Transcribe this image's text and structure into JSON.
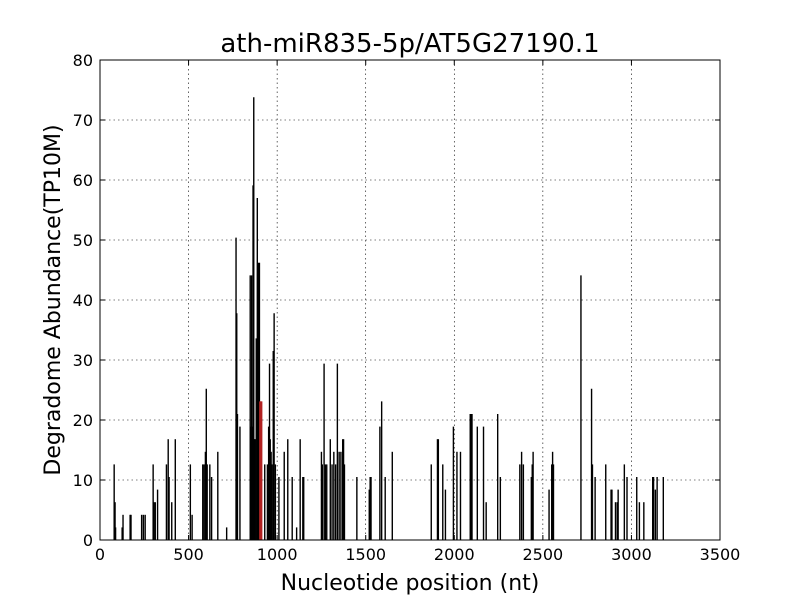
{
  "chart_data": {
    "type": "bar",
    "title": "ath-miR835-5p/AT5G27190.1",
    "xlabel": "Nucleotide position (nt)",
    "ylabel": "Degradome Abundance(TP10M)",
    "xlim": [
      0,
      3500
    ],
    "ylim": [
      0,
      80
    ],
    "xticks": [
      "0",
      "500",
      "1000",
      "1500",
      "2000",
      "2500",
      "3000",
      "3500"
    ],
    "yticks": [
      "0",
      "10",
      "20",
      "30",
      "40",
      "50",
      "60",
      "70",
      "80"
    ],
    "xtick_values": [
      0,
      500,
      1000,
      1500,
      2000,
      2500,
      3000,
      3500
    ],
    "ytick_values": [
      0,
      10,
      20,
      30,
      40,
      50,
      60,
      70,
      80
    ],
    "grid": true,
    "colors": {
      "bar": "#000000",
      "highlight": "#b22222"
    },
    "series": [
      {
        "values": [
          [
            80,
            12.6
          ],
          [
            85,
            6.3
          ],
          [
            88,
            2.1
          ],
          [
            125,
            2.1
          ],
          [
            130,
            4.2
          ],
          [
            170,
            4.2
          ],
          [
            175,
            4.2
          ],
          [
            235,
            4.2
          ],
          [
            245,
            4.2
          ],
          [
            255,
            4.2
          ],
          [
            300,
            12.6
          ],
          [
            305,
            6.3
          ],
          [
            312,
            6.3
          ],
          [
            325,
            8.4
          ],
          [
            375,
            12.6
          ],
          [
            385,
            16.8
          ],
          [
            390,
            10.5
          ],
          [
            405,
            6.3
          ],
          [
            425,
            16.8
          ],
          [
            510,
            12.6
          ],
          [
            520,
            4.2
          ],
          [
            580,
            12.6
          ],
          [
            588,
            12.6
          ],
          [
            595,
            14.7
          ],
          [
            600,
            25.2
          ],
          [
            605,
            12.6
          ],
          [
            620,
            12.6
          ],
          [
            630,
            10.5
          ],
          [
            665,
            14.7
          ],
          [
            715,
            2.1
          ],
          [
            768,
            50.4
          ],
          [
            772,
            37.8
          ],
          [
            776,
            21.0
          ],
          [
            790,
            18.9
          ],
          [
            848,
            44.1
          ],
          [
            852,
            18.9
          ],
          [
            856,
            44.1
          ],
          [
            860,
            18.9
          ],
          [
            864,
            59.1
          ],
          [
            868,
            73.8
          ],
          [
            872,
            16.8
          ],
          [
            876,
            16.8
          ],
          [
            882,
            33.6
          ],
          [
            888,
            57.0
          ],
          [
            895,
            46.2
          ],
          [
            900,
            46.2
          ],
          [
            904,
            18.9
          ],
          [
            930,
            12.6
          ],
          [
            945,
            12.6
          ],
          [
            952,
            18.9
          ],
          [
            957,
            29.4
          ],
          [
            961,
            16.8
          ],
          [
            966,
            14.7
          ],
          [
            970,
            12.6
          ],
          [
            978,
            31.5
          ],
          [
            983,
            37.8
          ],
          [
            990,
            12.6
          ],
          [
            1010,
            10.5
          ],
          [
            1040,
            14.7
          ],
          [
            1060,
            16.8
          ],
          [
            1085,
            10.5
          ],
          [
            1110,
            2.1
          ],
          [
            1130,
            16.8
          ],
          [
            1145,
            10.5
          ],
          [
            1150,
            10.5
          ],
          [
            1250,
            14.7
          ],
          [
            1255,
            12.6
          ],
          [
            1265,
            29.4
          ],
          [
            1272,
            12.6
          ],
          [
            1280,
            12.6
          ],
          [
            1300,
            16.8
          ],
          [
            1310,
            12.6
          ],
          [
            1320,
            14.7
          ],
          [
            1330,
            12.6
          ],
          [
            1340,
            29.4
          ],
          [
            1350,
            14.7
          ],
          [
            1360,
            14.7
          ],
          [
            1370,
            16.8
          ],
          [
            1375,
            16.8
          ],
          [
            1380,
            12.6
          ],
          [
            1450,
            10.5
          ],
          [
            1520,
            8.4
          ],
          [
            1525,
            10.5
          ],
          [
            1530,
            10.5
          ],
          [
            1580,
            18.9
          ],
          [
            1590,
            23.1
          ],
          [
            1610,
            10.5
          ],
          [
            1650,
            14.7
          ],
          [
            1870,
            12.6
          ],
          [
            1905,
            16.8
          ],
          [
            1910,
            16.8
          ],
          [
            1935,
            12.6
          ],
          [
            1950,
            8.4
          ],
          [
            1995,
            18.9
          ],
          [
            2015,
            14.7
          ],
          [
            2035,
            14.7
          ],
          [
            2090,
            21.0
          ],
          [
            2095,
            21.0
          ],
          [
            2100,
            21.0
          ],
          [
            2130,
            18.9
          ],
          [
            2165,
            18.9
          ],
          [
            2180,
            6.3
          ],
          [
            2245,
            21.0
          ],
          [
            2260,
            10.5
          ],
          [
            2370,
            12.6
          ],
          [
            2380,
            14.7
          ],
          [
            2390,
            12.6
          ],
          [
            2435,
            10.5
          ],
          [
            2440,
            12.6
          ],
          [
            2445,
            14.7
          ],
          [
            2535,
            8.4
          ],
          [
            2550,
            12.6
          ],
          [
            2555,
            14.7
          ],
          [
            2560,
            12.6
          ],
          [
            2715,
            44.1
          ],
          [
            2775,
            25.2
          ],
          [
            2780,
            12.6
          ],
          [
            2795,
            10.5
          ],
          [
            2855,
            12.6
          ],
          [
            2885,
            8.4
          ],
          [
            2890,
            8.4
          ],
          [
            2910,
            6.3
          ],
          [
            2920,
            6.3
          ],
          [
            2925,
            8.4
          ],
          [
            2960,
            12.6
          ],
          [
            2975,
            10.5
          ],
          [
            3030,
            10.5
          ],
          [
            3045,
            6.3
          ],
          [
            3070,
            6.3
          ],
          [
            3120,
            10.5
          ],
          [
            3125,
            10.5
          ],
          [
            3135,
            8.4
          ],
          [
            3145,
            10.5
          ],
          [
            3180,
            10.5
          ]
        ]
      },
      {
        "values": [
          [
            905,
            23.1
          ],
          [
            910,
            23.1
          ]
        ]
      }
    ]
  }
}
